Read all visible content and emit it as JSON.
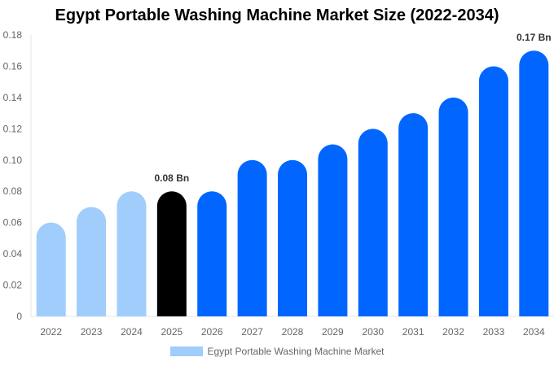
{
  "chart_data": {
    "type": "bar",
    "title": "Egypt Portable Washing Machine Market Size (2022-2034)",
    "categories": [
      "2022",
      "2023",
      "2024",
      "2025",
      "2026",
      "2027",
      "2028",
      "2029",
      "2030",
      "2031",
      "2032",
      "2033",
      "2034"
    ],
    "series": [
      {
        "name": "Egypt Portable Washing Machine Market",
        "values": [
          0.06,
          0.07,
          0.08,
          0.08,
          0.08,
          0.1,
          0.1,
          0.11,
          0.12,
          0.13,
          0.14,
          0.16,
          0.17
        ]
      }
    ],
    "ylim": [
      0,
      0.18
    ],
    "yticks": [
      "0",
      "0.02",
      "0.04",
      "0.06",
      "0.08",
      "0.10",
      "0.12",
      "0.14",
      "0.16",
      "0.18"
    ],
    "annotations": [
      {
        "category": "2025",
        "text": "0.08 Bn"
      },
      {
        "category": "2034",
        "text": "0.17 Bn"
      }
    ],
    "bar_colors": {
      "historical": "#a0cdfc",
      "current": "#000000",
      "forecast": "#0066ff"
    },
    "grid": false,
    "legend_position": "bottom",
    "legend_color": "#a0cdfc"
  }
}
